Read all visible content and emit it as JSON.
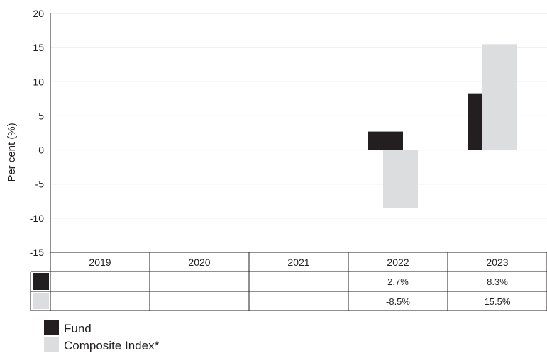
{
  "chart_data": {
    "type": "bar",
    "title": "",
    "xlabel": "",
    "ylabel": "Per cent (%)",
    "ylim": [
      -15,
      20
    ],
    "yticks": [
      20,
      15,
      10,
      5,
      0,
      -5,
      -10,
      -15
    ],
    "ytick_labels": [
      "20",
      "15",
      "10",
      "5",
      "0",
      "-5",
      "-10",
      "-15"
    ],
    "grid": true,
    "legend_position": "bottom-left",
    "categories": [
      "2019",
      "2020",
      "2021",
      "2022",
      "2023"
    ],
    "series": [
      {
        "name": "Fund",
        "color": "#231f20",
        "values": [
          null,
          null,
          null,
          2.7,
          8.3
        ],
        "value_labels": [
          "",
          "",
          "",
          "2.7%",
          "8.3%"
        ]
      },
      {
        "name": "Composite Index*",
        "color": "#dcdddf",
        "values": [
          null,
          null,
          null,
          -8.5,
          15.5
        ],
        "value_labels": [
          "",
          "",
          "",
          "-8.5%",
          "15.5%"
        ]
      }
    ]
  }
}
